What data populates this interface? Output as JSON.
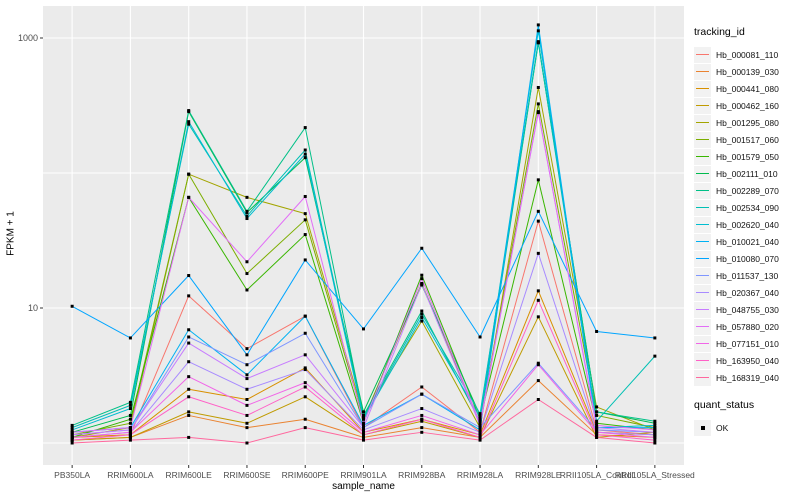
{
  "style": {
    "panel_bg": "#EBEBEB",
    "gridline_color": "#FFFFFF",
    "tick_color": "#333333",
    "tick_label_color": "#4D4D4D",
    "point_color": "#000000",
    "legend_key_bg": "#F2F2F2"
  },
  "chart_data": {
    "type": "line",
    "title": "",
    "xlabel": "sample_name",
    "ylabel": "FPKM + 1",
    "y_scale": "log10",
    "y_axis_tick_values": [
      10,
      1000
    ],
    "y_axis_tick_labels": [
      "10",
      "1000"
    ],
    "gridline_values": [
      1,
      10,
      100,
      1000
    ],
    "ylim": [
      0.85,
      1500
    ],
    "legend_position": "right",
    "marker": "small black square (quant_status = OK)",
    "categories": [
      "PB350LA",
      "RRIM600LA",
      "RRIM600LE",
      "RRIM600SE",
      "RRIM600PE",
      "RRIM901LA",
      "RRIM928BA",
      "RRIM928LA",
      "RRIM928LE",
      "RRII105LA_Control",
      "RRII105LA_Stressed"
    ],
    "legend_title": "tracking_id",
    "legend2_title": "quant_status",
    "legend2_items": [
      {
        "label": "OK",
        "marker": "square",
        "color": "#000000"
      }
    ],
    "series": [
      {
        "name": "Hb_000081_110",
        "color": "#F8766D",
        "values": [
          1.1,
          1.15,
          12.3,
          5.0,
          8.7,
          1.3,
          2.6,
          1.2,
          44,
          1.25,
          1.15
        ]
      },
      {
        "name": "Hb_000139_030",
        "color": "#EA8331",
        "values": [
          1.05,
          1.1,
          1.6,
          1.3,
          1.5,
          1.1,
          1.3,
          1.1,
          2.9,
          1.15,
          1.1
        ]
      },
      {
        "name": "Hb_000441_080",
        "color": "#D89000",
        "values": [
          1.1,
          1.15,
          2.5,
          2.1,
          3.6,
          1.2,
          1.5,
          1.15,
          13.4,
          1.2,
          1.15
        ]
      },
      {
        "name": "Hb_000462_160",
        "color": "#C09B00",
        "values": [
          1.05,
          1.1,
          1.7,
          1.4,
          2.2,
          1.15,
          1.45,
          1.1,
          8.6,
          1.1,
          1.2
        ]
      },
      {
        "name": "Hb_001295_080",
        "color": "#A3A500",
        "values": [
          1.1,
          1.3,
          98,
          66,
          50,
          1.6,
          8.0,
          1.3,
          430,
          1.85,
          1.25
        ]
      },
      {
        "name": "Hb_001517_060",
        "color": "#7CAE00",
        "values": [
          1.15,
          1.4,
          98,
          18,
          45,
          1.5,
          15.2,
          1.4,
          325,
          1.6,
          1.3
        ]
      },
      {
        "name": "Hb_001579_050",
        "color": "#39B600",
        "values": [
          1.1,
          1.5,
          66,
          13.6,
          35,
          1.4,
          17.5,
          1.5,
          89,
          1.4,
          1.25
        ]
      },
      {
        "name": "Hb_002111_010",
        "color": "#00BB4E",
        "values": [
          1.2,
          1.6,
          285,
          51,
          130,
          1.7,
          14.8,
          1.6,
          920,
          1.7,
          1.4
        ]
      },
      {
        "name": "Hb_002289_070",
        "color": "#00C087",
        "values": [
          1.35,
          2.0,
          290,
          52,
          217,
          1.6,
          9.5,
          1.45,
          930,
          1.7,
          1.45
        ]
      },
      {
        "name": "Hb_002534_090",
        "color": "#00C0B4",
        "values": [
          1.3,
          1.9,
          230,
          48,
          148,
          1.55,
          9.0,
          1.65,
          940,
          1.45,
          4.4
        ]
      },
      {
        "name": "Hb_002620_040",
        "color": "#00BDD0",
        "values": [
          1.25,
          1.8,
          240,
          46,
          138,
          1.5,
          8.5,
          1.55,
          1130,
          1.3,
          1.35
        ]
      },
      {
        "name": "Hb_010021_040",
        "color": "#00B2F3",
        "values": [
          1.2,
          1.3,
          6.9,
          3.2,
          8.7,
          1.35,
          2.3,
          1.25,
          1250,
          1.3,
          1.3
        ]
      },
      {
        "name": "Hb_010080_070",
        "color": "#00A5FF",
        "values": [
          10.3,
          6.0,
          17.4,
          4.5,
          22.7,
          7.0,
          27.7,
          6.1,
          52,
          6.7,
          6.0
        ]
      },
      {
        "name": "Hb_011537_130",
        "color": "#7F96FF",
        "values": [
          1.15,
          1.25,
          6.1,
          3.8,
          6.5,
          1.3,
          2.3,
          1.3,
          3.9,
          1.25,
          1.2
        ]
      },
      {
        "name": "Hb_020367_040",
        "color": "#A88BFF",
        "values": [
          1.1,
          1.2,
          4.0,
          2.5,
          3.5,
          1.25,
          1.8,
          1.2,
          25.4,
          1.2,
          1.15
        ]
      },
      {
        "name": "Hb_048755_030",
        "color": "#C77CFF",
        "values": [
          1.15,
          1.25,
          5.5,
          3.0,
          4.5,
          1.3,
          15.0,
          1.35,
          285,
          1.3,
          1.2
        ]
      },
      {
        "name": "Hb_057880_020",
        "color": "#E26EF7",
        "values": [
          1.2,
          1.3,
          66,
          22,
          67,
          1.4,
          16.5,
          1.4,
          280,
          1.35,
          1.25
        ]
      },
      {
        "name": "Hb_077151_010",
        "color": "#F166E8",
        "values": [
          1.1,
          1.2,
          3.1,
          1.9,
          2.8,
          1.2,
          1.6,
          1.15,
          3.8,
          1.2,
          1.1
        ]
      },
      {
        "name": "Hb_163950_040",
        "color": "#FF61C7",
        "values": [
          1.05,
          1.15,
          2.2,
          1.6,
          2.6,
          1.15,
          1.5,
          1.1,
          11.4,
          1.15,
          1.05
        ]
      },
      {
        "name": "Hb_168319_040",
        "color": "#FF689E",
        "values": [
          1.0,
          1.05,
          1.1,
          1.0,
          1.3,
          1.05,
          1.2,
          1.05,
          2.1,
          1.1,
          1.0
        ]
      }
    ]
  }
}
